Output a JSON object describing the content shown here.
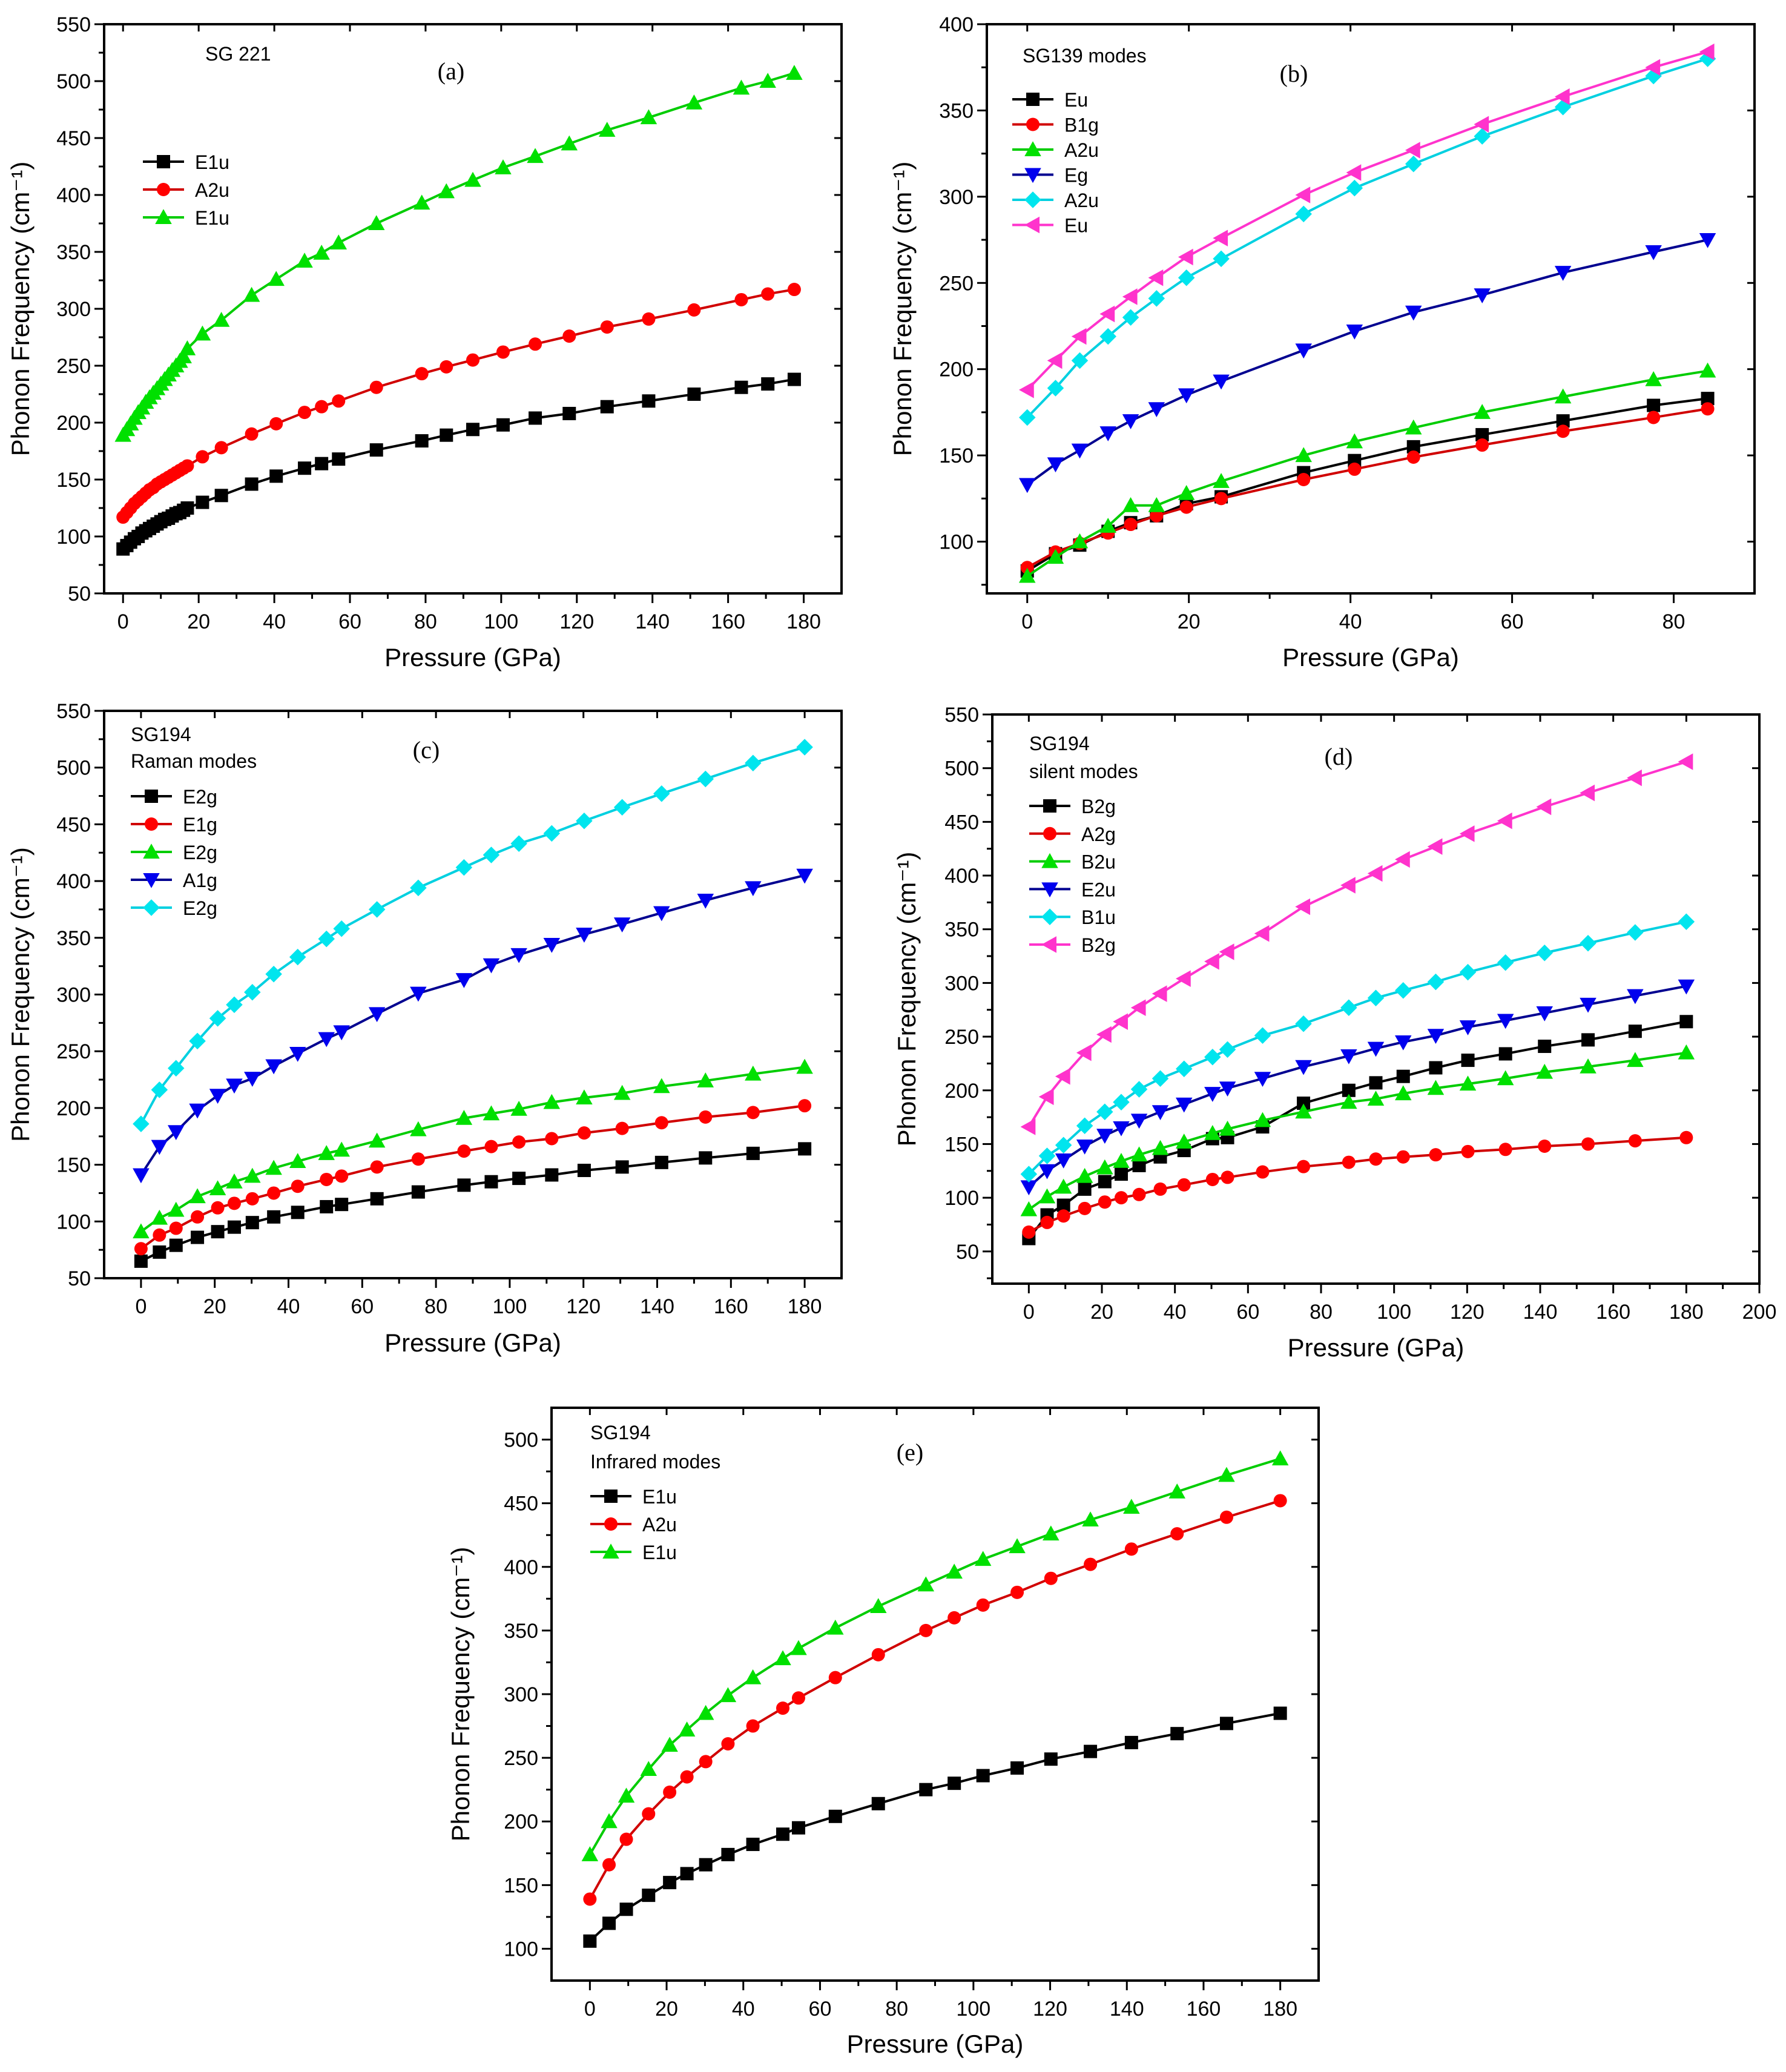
{
  "chart_data": [
    {
      "type": "line",
      "panel_label": "(a)",
      "annotation": [
        "SG 221"
      ],
      "xlabel": "Pressure (GPa)",
      "ylabel": "Phonon Frequency (cm⁻¹)",
      "xlim": [
        -5,
        190
      ],
      "ylim": [
        50,
        550
      ],
      "xticks": [
        0,
        20,
        40,
        60,
        80,
        100,
        120,
        140,
        160,
        180
      ],
      "yticks": [
        50,
        100,
        150,
        200,
        250,
        300,
        350,
        400,
        450,
        500,
        550
      ],
      "grid": false,
      "legend_position": "top-left",
      "x": [
        0,
        1,
        2,
        3,
        4,
        5,
        6,
        7,
        8,
        9,
        10,
        11,
        12,
        13,
        14,
        15,
        16,
        17,
        21,
        26,
        34,
        40.5,
        48,
        52.5,
        57,
        67,
        79,
        85.5,
        92.5,
        100.5,
        109,
        118,
        128,
        139,
        151,
        163.5,
        170.5,
        177.5
      ],
      "series": [
        {
          "name": "E1u",
          "color": "#000000",
          "line": "#000000",
          "marker": "square",
          "y": [
            89,
            92,
            95,
            98,
            100,
            103,
            105,
            107,
            109,
            111,
            113,
            115,
            116,
            118,
            120,
            121,
            123,
            125,
            130,
            136,
            146,
            153,
            160,
            164,
            168,
            176,
            184,
            189,
            194,
            198,
            204,
            208,
            214,
            219,
            225,
            231,
            234,
            238
          ]
        },
        {
          "name": "A2u",
          "color": "#ff0000",
          "line": "#d00000",
          "marker": "circle",
          "y": [
            117,
            121,
            125,
            129,
            132,
            135,
            138,
            141,
            143,
            146,
            148,
            150,
            152,
            154,
            156,
            158,
            160,
            162,
            170,
            178,
            190,
            199,
            209,
            214,
            219,
            231,
            243,
            249,
            255,
            262,
            269,
            276,
            284,
            291,
            299,
            308,
            313,
            317
          ]
        },
        {
          "name": "E1u",
          "color": "#00e000",
          "line": "#00cc00",
          "marker": "triangle-up",
          "y": [
            189,
            194,
            199,
            204,
            209,
            213,
            218,
            222,
            226,
            230,
            234,
            238,
            242,
            246,
            250,
            254,
            258,
            265,
            278,
            290,
            312,
            326,
            342,
            349,
            358,
            375,
            393,
            403,
            413,
            424,
            434,
            445,
            457,
            468,
            481,
            494,
            500,
            507
          ]
        }
      ]
    },
    {
      "type": "line",
      "panel_label": "(b)",
      "annotation": [
        "SG139 modes"
      ],
      "xlabel": "Pressure (GPa)",
      "ylabel": "Phonon Frequency (cm⁻¹)",
      "xlim": [
        -5,
        90
      ],
      "ylim": [
        70,
        400
      ],
      "xticks": [
        0,
        20,
        40,
        60,
        80
      ],
      "yticks": [
        100,
        150,
        200,
        250,
        300,
        350,
        400
      ],
      "grid": false,
      "legend_position": "top-left",
      "x": [
        0,
        3.5,
        6.5,
        10,
        12.8,
        16,
        19.7,
        24,
        34.2,
        40.5,
        47.8,
        56.3,
        66.3,
        77.5,
        84.2
      ],
      "series": [
        {
          "name": "Eu",
          "color": "#000000",
          "line": "#000000",
          "marker": "square",
          "y": [
            83,
            93,
            98,
            106,
            111,
            115,
            122,
            126,
            140,
            147,
            155,
            162,
            170,
            179,
            183
          ]
        },
        {
          "name": "B1g",
          "color": "#ff0000",
          "line": "#d00000",
          "marker": "circle",
          "y": [
            85,
            94,
            99,
            105,
            110,
            115,
            120,
            125,
            136,
            142,
            149,
            156,
            164,
            172,
            177
          ]
        },
        {
          "name": "A2u",
          "color": "#00e000",
          "line": "#00cc00",
          "marker": "triangle-up",
          "y": [
            80,
            91,
            100,
            109,
            121,
            121,
            128,
            135,
            150,
            158,
            166,
            175,
            184,
            194,
            199
          ]
        },
        {
          "name": "Eg",
          "color": "#0000ee",
          "line": "#000090",
          "marker": "triangle-down",
          "y": [
            133,
            145,
            153,
            163,
            170,
            177,
            185,
            193,
            211,
            222,
            233,
            243,
            256,
            268,
            275
          ]
        },
        {
          "name": "A2u",
          "color": "#00e5ee",
          "line": "#00d0e0",
          "marker": "diamond",
          "y": [
            172,
            189,
            205,
            219,
            230,
            241,
            253,
            264,
            290,
            305,
            319,
            335,
            352,
            370,
            380
          ]
        },
        {
          "name": "Eu",
          "color": "#ff33cc",
          "line": "#ff33cc",
          "marker": "triangle-left",
          "y": [
            188,
            205,
            219,
            232,
            242,
            253,
            265,
            276,
            301,
            314,
            327,
            342,
            358,
            375,
            384
          ]
        }
      ]
    },
    {
      "type": "line",
      "panel_label": "(c)",
      "annotation": [
        "SG194",
        "Raman modes"
      ],
      "xlabel": "Pressure (GPa)",
      "ylabel": "Phonon Frequency (cm⁻¹)",
      "xlim": [
        -10,
        190
      ],
      "ylim": [
        50,
        550
      ],
      "xticks": [
        0,
        20,
        40,
        60,
        80,
        100,
        120,
        140,
        160,
        180
      ],
      "yticks": [
        50,
        100,
        150,
        200,
        250,
        300,
        350,
        400,
        450,
        500,
        550
      ],
      "grid": false,
      "legend_position": "top-left",
      "x": [
        0,
        5,
        9.5,
        15.3,
        20.8,
        25.3,
        30.2,
        36,
        42.5,
        50.3,
        54.4,
        64,
        75.2,
        87.6,
        95,
        102.5,
        111.4,
        120.2,
        130.5,
        141.2,
        153.1,
        166,
        180
      ],
      "series": [
        {
          "name": "E2g",
          "color": "#000000",
          "line": "#000000",
          "marker": "square",
          "y": [
            65,
            73,
            79,
            86,
            91,
            95,
            99,
            104,
            108,
            113,
            115,
            120,
            126,
            132,
            135,
            138,
            141,
            145,
            148,
            152,
            156,
            160,
            164
          ]
        },
        {
          "name": "E1g",
          "color": "#ff0000",
          "line": "#d00000",
          "marker": "circle",
          "y": [
            76,
            88,
            94,
            104,
            112,
            116,
            120,
            125,
            131,
            137,
            140,
            148,
            155,
            162,
            166,
            170,
            173,
            178,
            182,
            187,
            192,
            196,
            202
          ]
        },
        {
          "name": "E2g",
          "color": "#00e000",
          "line": "#00cc00",
          "marker": "triangle-up",
          "y": [
            91,
            103,
            110,
            122,
            129,
            135,
            140,
            147,
            153,
            160,
            163,
            171,
            181,
            191,
            195,
            199,
            205,
            209,
            213,
            219,
            224,
            230,
            236
          ]
        },
        {
          "name": "A1g",
          "color": "#0000ee",
          "line": "#000090",
          "marker": "triangle-down",
          "y": [
            141,
            166,
            179,
            198,
            211,
            220,
            226,
            237,
            248,
            261,
            267,
            283,
            301,
            313,
            326,
            335,
            344,
            353,
            362,
            372,
            383,
            394,
            405
          ]
        },
        {
          "name": "E2g",
          "color": "#00e5ee",
          "line": "#00d0e0",
          "marker": "diamond",
          "y": [
            186,
            216,
            235,
            259,
            279,
            291,
            302,
            318,
            333,
            349,
            358,
            375,
            394,
            412,
            423,
            433,
            442,
            453,
            465,
            477,
            490,
            504,
            518
          ]
        }
      ]
    },
    {
      "type": "line",
      "panel_label": "(d)",
      "annotation": [
        "SG194",
        "silent modes"
      ],
      "xlabel": "Pressure (GPa)",
      "ylabel": "Phonon Frequency (cm⁻¹)",
      "xlim": [
        -10,
        200
      ],
      "ylim": [
        20,
        550
      ],
      "xticks": [
        0,
        20,
        40,
        60,
        80,
        100,
        120,
        140,
        160,
        180,
        200
      ],
      "yticks": [
        50,
        100,
        150,
        200,
        250,
        300,
        350,
        400,
        450,
        500,
        550
      ],
      "grid": false,
      "legend_position": "top-left",
      "x": [
        0,
        5,
        9.5,
        15.3,
        20.8,
        25.3,
        30.2,
        36,
        42.5,
        50.3,
        54.4,
        64,
        75.2,
        87.6,
        95,
        102.5,
        111.4,
        120.2,
        130.5,
        141.2,
        153.1,
        166,
        180
      ],
      "series": [
        {
          "name": "B2g",
          "color": "#000000",
          "line": "#000000",
          "marker": "square",
          "y": [
            62,
            84,
            93,
            108,
            115,
            122,
            130,
            138,
            144,
            155,
            156,
            166,
            188,
            200,
            207,
            213,
            221,
            228,
            234,
            241,
            247,
            255,
            264
          ]
        },
        {
          "name": "A2g",
          "color": "#ff0000",
          "line": "#d00000",
          "marker": "circle",
          "y": [
            68,
            77,
            83,
            90,
            96,
            100,
            103,
            108,
            112,
            117,
            119,
            124,
            129,
            133,
            136,
            138,
            140,
            143,
            145,
            148,
            150,
            153,
            156
          ]
        },
        {
          "name": "B2u",
          "color": "#00e000",
          "line": "#00cc00",
          "marker": "triangle-up",
          "y": [
            89,
            101,
            110,
            120,
            128,
            134,
            140,
            146,
            152,
            160,
            164,
            172,
            180,
            189,
            192,
            197,
            202,
            206,
            211,
            217,
            222,
            228,
            235
          ]
        },
        {
          "name": "E2u",
          "color": "#0000ee",
          "line": "#000090",
          "marker": "triangle-down",
          "y": [
            110,
            125,
            135,
            148,
            158,
            165,
            172,
            180,
            187,
            197,
            202,
            211,
            222,
            232,
            239,
            245,
            251,
            259,
            265,
            272,
            280,
            288,
            297
          ]
        },
        {
          "name": "B1u",
          "color": "#00e5ee",
          "line": "#00d0e0",
          "marker": "diamond",
          "y": [
            122,
            139,
            149,
            167,
            180,
            189,
            201,
            211,
            220,
            231,
            238,
            251,
            262,
            277,
            286,
            293,
            301,
            310,
            319,
            328,
            337,
            347,
            357
          ]
        },
        {
          "name": "B2g",
          "color": "#ff33cc",
          "line": "#ff33cc",
          "marker": "triangle-left",
          "y": [
            166,
            194,
            213,
            235,
            252,
            264,
            277,
            290,
            304,
            320,
            329,
            346,
            371,
            391,
            402,
            415,
            427,
            439,
            451,
            464,
            477,
            491,
            506
          ]
        }
      ]
    },
    {
      "type": "line",
      "panel_label": "(e)",
      "annotation": [
        "SG194",
        "Infrared modes"
      ],
      "xlabel": "Pressure (GPa)",
      "ylabel": "Phonon Frequency (cm⁻¹)",
      "xlim": [
        -10,
        190
      ],
      "ylim": [
        75,
        525
      ],
      "xticks": [
        0,
        20,
        40,
        60,
        80,
        100,
        120,
        140,
        160,
        180
      ],
      "yticks": [
        100,
        150,
        200,
        250,
        300,
        350,
        400,
        450,
        500
      ],
      "grid": false,
      "legend_position": "top-left",
      "x": [
        0,
        5,
        9.5,
        15.3,
        20.8,
        25.3,
        30.2,
        36,
        42.5,
        50.3,
        54.4,
        64,
        75.2,
        87.6,
        95,
        102.5,
        111.4,
        120.2,
        130.5,
        141.2,
        153.1,
        166,
        180
      ],
      "series": [
        {
          "name": "E1u",
          "color": "#000000",
          "line": "#000000",
          "marker": "square",
          "y": [
            106,
            120,
            131,
            142,
            152,
            159,
            166,
            174,
            182,
            190,
            195,
            204,
            214,
            225,
            230,
            236,
            242,
            249,
            255,
            262,
            269,
            277,
            285
          ]
        },
        {
          "name": "A2u",
          "color": "#ff0000",
          "line": "#d00000",
          "marker": "circle",
          "y": [
            139,
            166,
            186,
            206,
            223,
            235,
            247,
            261,
            275,
            289,
            297,
            313,
            331,
            350,
            360,
            370,
            380,
            391,
            402,
            414,
            426,
            439,
            452
          ]
        },
        {
          "name": "E1u",
          "color": "#00e000",
          "line": "#00cc00",
          "marker": "triangle-up",
          "y": [
            174,
            200,
            220,
            241,
            260,
            272,
            285,
            299,
            313,
            328,
            336,
            352,
            369,
            386,
            396,
            406,
            416,
            426,
            437,
            447,
            459,
            472,
            485
          ]
        }
      ]
    }
  ]
}
